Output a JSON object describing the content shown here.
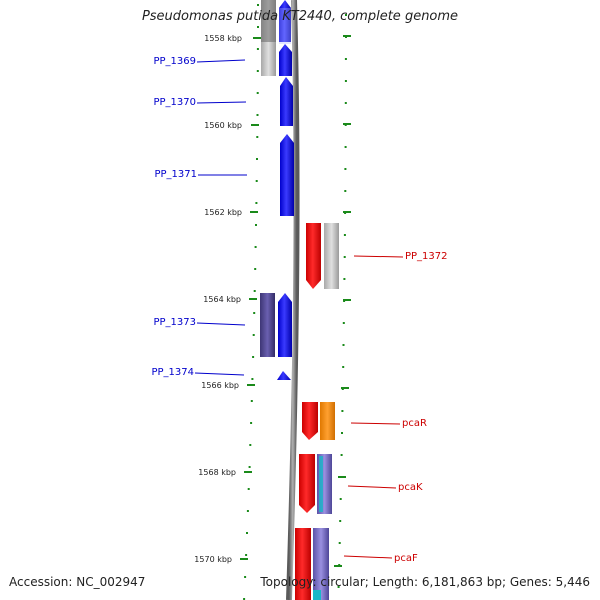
{
  "header": {
    "title": "Pseudomonas putida KT2440, complete genome"
  },
  "footer": {
    "accession": "Accession: NC_002947",
    "summary": "Topology: circular; Length: 6,181,863 bp; Genes: 5,446"
  },
  "colors": {
    "forward_gene": "#0000ee",
    "reverse_gene": "#ee0000",
    "orange_gene": "#ff8c00",
    "purple_gene": "#4a3f8a",
    "cyan_gene": "#18b8c8",
    "gray_gene": "#b8b8b8",
    "scale_tick": "#1a8a1a",
    "backbone": "#808080"
  },
  "scale_ticks": [
    "1558 kbp",
    "1560 kbp",
    "1562 kbp",
    "1564 kbp",
    "1566 kbp",
    "1568 kbp",
    "1570 kbp"
  ],
  "left_labels": [
    "PP_1369",
    "PP_1370",
    "PP_1371",
    "PP_1373",
    "PP_1374"
  ],
  "right_labels": [
    "PP_1372",
    "pcaR",
    "pcaK",
    "pcaF"
  ]
}
